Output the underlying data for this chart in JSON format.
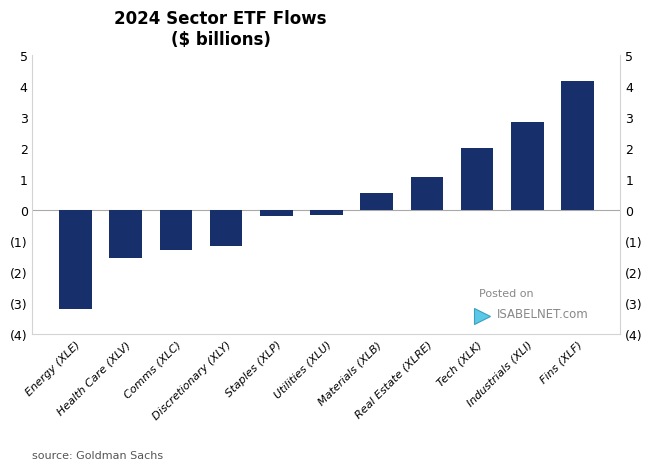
{
  "title_line1": "2024 Sector ETF Flows",
  "title_line2": "($ billions)",
  "categories": [
    "Energy (XLE)",
    "Health Care (XLV)",
    "Comms (XLC)",
    "Discretionary (XLY)",
    "Staples (XLP)",
    "Utilities (XLU)",
    "Materials (XLB)",
    "Real Estate (XLRE)",
    "Tech (XLK)",
    "Industrials (XLI)",
    "Fins (XLF)"
  ],
  "values": [
    -3.2,
    -1.55,
    -1.3,
    -1.15,
    -0.2,
    -0.15,
    0.55,
    1.05,
    2.0,
    2.85,
    4.15
  ],
  "bar_color": "#17306b",
  "ylim": [
    -4,
    5
  ],
  "yticks": [
    -4,
    -3,
    -2,
    -1,
    0,
    1,
    2,
    3,
    4,
    5
  ],
  "source_text": "source: Goldman Sachs",
  "background_color": "#ffffff",
  "watermark_line1": "Posted on",
  "watermark_line2": "ISABELNET.com"
}
